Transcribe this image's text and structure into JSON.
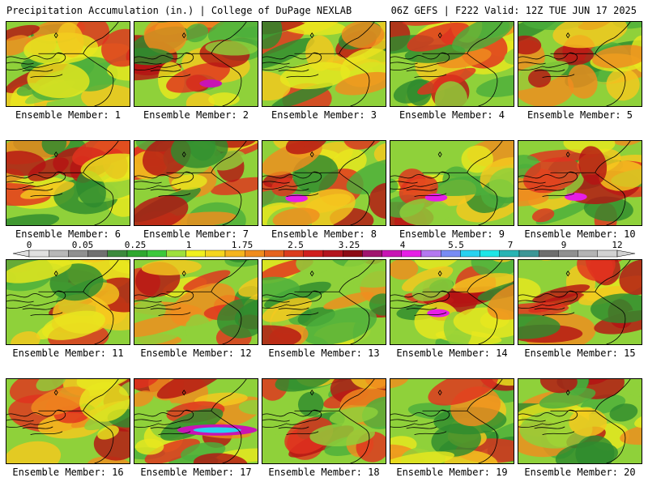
{
  "header": {
    "left": "Precipitation Accumulation (in.) | College of DuPage NEXLAB",
    "right": "06Z GEFS | F222 Valid: 12Z TUE JUN 17 2025"
  },
  "colorbar": {
    "ticks": [
      "0",
      "0.05",
      "0.25",
      "1",
      "1.75",
      "2.5",
      "3.25",
      "4",
      "5.5",
      "7",
      "9",
      "12"
    ],
    "colors": [
      "#e0e0e0",
      "#b8b8b8",
      "#909090",
      "#707070",
      "#3c8a3c",
      "#2fa82f",
      "#3cc83c",
      "#9ee03c",
      "#f0f01e",
      "#f5d51e",
      "#f5b41e",
      "#f08c1e",
      "#e6641e",
      "#dc3c1e",
      "#d01e1e",
      "#b4141e",
      "#8c0a14",
      "#a0146e",
      "#c814b4",
      "#e61ee6",
      "#b478f0",
      "#788cf5",
      "#28d2f0",
      "#1ee6e6",
      "#28b4b4",
      "#3c9696",
      "#6e6e6e",
      "#909090",
      "#b4b4b4",
      "#d2d2d2"
    ]
  },
  "members": [
    {
      "label": "Ensemble Member: 1"
    },
    {
      "label": "Ensemble Member: 2"
    },
    {
      "label": "Ensemble Member: 3"
    },
    {
      "label": "Ensemble Member: 4"
    },
    {
      "label": "Ensemble Member: 5"
    },
    {
      "label": "Ensemble Member: 6"
    },
    {
      "label": "Ensemble Member: 7"
    },
    {
      "label": "Ensemble Member: 8"
    },
    {
      "label": "Ensemble Member: 9"
    },
    {
      "label": "Ensemble Member: 10"
    },
    {
      "label": "Ensemble Member: 11"
    },
    {
      "label": "Ensemble Member: 12"
    },
    {
      "label": "Ensemble Member: 13"
    },
    {
      "label": "Ensemble Member: 14"
    },
    {
      "label": "Ensemble Member: 15"
    },
    {
      "label": "Ensemble Member: 16"
    },
    {
      "label": "Ensemble Member: 17"
    },
    {
      "label": "Ensemble Member: 18"
    },
    {
      "label": "Ensemble Member: 19"
    },
    {
      "label": "Ensemble Member: 20"
    }
  ]
}
